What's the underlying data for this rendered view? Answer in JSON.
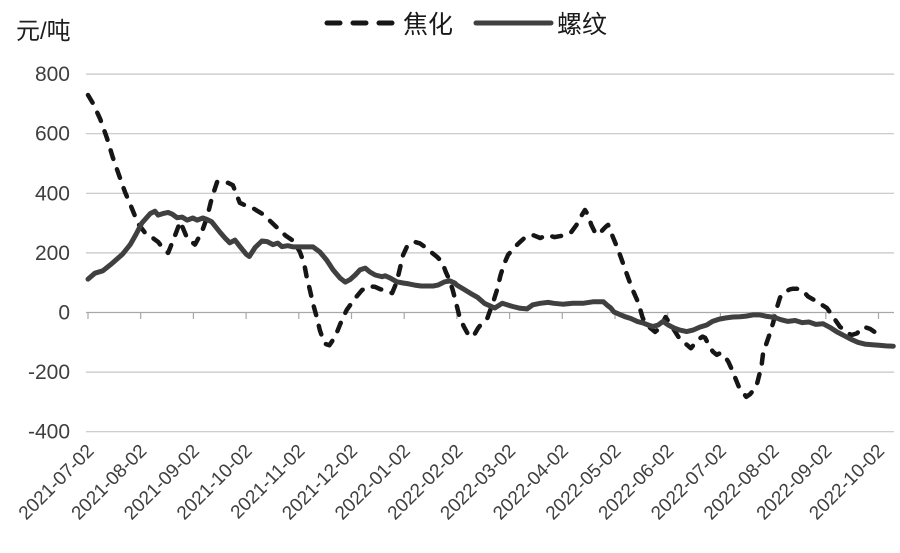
{
  "chart_data": {
    "type": "line",
    "y_unit": "元/吨",
    "ylim": [
      -400,
      800
    ],
    "y_ticks": [
      800,
      600,
      400,
      200,
      0,
      -200,
      -400
    ],
    "grid": true,
    "legend_position": "top-center",
    "x_axis": {
      "tick_labels": [
        "2021-07-02",
        "2021-08-02",
        "2021-09-02",
        "2021-10-02",
        "2021-11-02",
        "2021-12-02",
        "2022-01-02",
        "2022-02-02",
        "2022-03-02",
        "2022-04-02",
        "2022-05-02",
        "2022-06-02",
        "2022-07-02",
        "2022-08-02",
        "2022-09-02",
        "2022-10-02"
      ],
      "points_x_unit": "months_after_2021-07-02"
    },
    "colors": {
      "grid": "#c6c6c6",
      "axis": "#a8a8a8",
      "tick_text": "#3f3f3f"
    },
    "series": [
      {
        "name": "焦化",
        "style": "dashed",
        "color": "#161616",
        "points": [
          [
            0.0,
            730
          ],
          [
            0.1,
            700
          ],
          [
            0.23,
            650
          ],
          [
            0.36,
            585
          ],
          [
            0.47,
            520
          ],
          [
            0.59,
            460
          ],
          [
            0.7,
            405
          ],
          [
            0.82,
            355
          ],
          [
            0.95,
            298
          ],
          [
            1.08,
            268
          ],
          [
            1.23,
            250
          ],
          [
            1.33,
            237
          ],
          [
            1.42,
            216
          ],
          [
            1.52,
            200
          ],
          [
            1.65,
            258
          ],
          [
            1.75,
            305
          ],
          [
            1.88,
            250
          ],
          [
            2.03,
            228
          ],
          [
            2.16,
            270
          ],
          [
            2.26,
            320
          ],
          [
            2.35,
            384
          ],
          [
            2.45,
            438
          ],
          [
            2.57,
            440
          ],
          [
            2.66,
            435
          ],
          [
            2.75,
            427
          ],
          [
            2.88,
            368
          ],
          [
            3.0,
            358
          ],
          [
            3.13,
            350
          ],
          [
            3.3,
            332
          ],
          [
            3.45,
            308
          ],
          [
            3.6,
            283
          ],
          [
            3.75,
            258
          ],
          [
            3.9,
            240
          ],
          [
            4.02,
            203
          ],
          [
            4.1,
            165
          ],
          [
            4.15,
            119
          ],
          [
            4.21,
            76
          ],
          [
            4.27,
            30
          ],
          [
            4.34,
            -15
          ],
          [
            4.4,
            -60
          ],
          [
            4.46,
            -90
          ],
          [
            4.5,
            -105
          ],
          [
            4.58,
            -110
          ],
          [
            4.69,
            -81
          ],
          [
            4.82,
            -24
          ],
          [
            4.91,
            9
          ],
          [
            5.07,
            48
          ],
          [
            5.2,
            75
          ],
          [
            5.33,
            88
          ],
          [
            5.45,
            86
          ],
          [
            5.55,
            78
          ],
          [
            5.64,
            75
          ],
          [
            5.7,
            69
          ],
          [
            5.77,
            65
          ],
          [
            5.86,
            103
          ],
          [
            5.92,
            149
          ],
          [
            5.98,
            193
          ],
          [
            6.05,
            220
          ],
          [
            6.11,
            232
          ],
          [
            6.2,
            237
          ],
          [
            6.3,
            232
          ],
          [
            6.43,
            215
          ],
          [
            6.53,
            200
          ],
          [
            6.62,
            187
          ],
          [
            6.72,
            170
          ],
          [
            6.79,
            136
          ],
          [
            6.86,
            109
          ],
          [
            6.92,
            76
          ],
          [
            6.98,
            36
          ],
          [
            7.05,
            -14
          ],
          [
            7.13,
            -47
          ],
          [
            7.22,
            -76
          ],
          [
            7.31,
            -81
          ],
          [
            7.4,
            -53
          ],
          [
            7.5,
            -30
          ],
          [
            7.58,
            -18
          ],
          [
            7.62,
            2
          ],
          [
            7.69,
            36
          ],
          [
            7.76,
            76
          ],
          [
            7.83,
            126
          ],
          [
            7.89,
            160
          ],
          [
            7.97,
            193
          ],
          [
            8.1,
            220
          ],
          [
            8.2,
            237
          ],
          [
            8.3,
            253
          ],
          [
            8.44,
            260
          ],
          [
            8.58,
            250
          ],
          [
            8.72,
            260
          ],
          [
            8.85,
            253
          ],
          [
            9.01,
            258
          ],
          [
            9.17,
            270
          ],
          [
            9.27,
            294
          ],
          [
            9.37,
            327
          ],
          [
            9.43,
            344
          ],
          [
            9.49,
            327
          ],
          [
            9.55,
            294
          ],
          [
            9.64,
            262
          ],
          [
            9.73,
            270
          ],
          [
            9.82,
            287
          ],
          [
            9.87,
            294
          ],
          [
            9.96,
            253
          ],
          [
            10.06,
            210
          ],
          [
            10.15,
            166
          ],
          [
            10.25,
            116
          ],
          [
            10.32,
            82
          ],
          [
            10.42,
            42
          ],
          [
            10.47,
            15
          ],
          [
            10.52,
            -15
          ],
          [
            10.57,
            -35
          ],
          [
            10.67,
            -52
          ],
          [
            10.76,
            -65
          ],
          [
            10.86,
            -50
          ],
          [
            10.96,
            -15
          ],
          [
            11.08,
            -47
          ],
          [
            11.2,
            -81
          ],
          [
            11.31,
            -100
          ],
          [
            11.44,
            -120
          ],
          [
            11.57,
            -92
          ],
          [
            11.66,
            -81
          ],
          [
            11.71,
            -85
          ],
          [
            11.8,
            -116
          ],
          [
            11.86,
            -132
          ],
          [
            11.93,
            -142
          ],
          [
            12.0,
            -136
          ],
          [
            12.09,
            -148
          ],
          [
            12.15,
            -165
          ],
          [
            12.22,
            -192
          ],
          [
            12.28,
            -219
          ],
          [
            12.35,
            -249
          ],
          [
            12.42,
            -266
          ],
          [
            12.49,
            -283
          ],
          [
            12.56,
            -275
          ],
          [
            12.62,
            -262
          ],
          [
            12.7,
            -236
          ],
          [
            12.78,
            -180
          ],
          [
            12.81,
            -136
          ],
          [
            12.92,
            -80
          ],
          [
            13.0,
            -35
          ],
          [
            13.07,
            15
          ],
          [
            13.13,
            50
          ],
          [
            13.19,
            65
          ],
          [
            13.26,
            72
          ],
          [
            13.32,
            78
          ],
          [
            13.38,
            80
          ],
          [
            13.45,
            80
          ],
          [
            13.52,
            75
          ],
          [
            13.57,
            72
          ],
          [
            13.66,
            54
          ],
          [
            13.78,
            42
          ],
          [
            13.89,
            30
          ],
          [
            14.02,
            15
          ],
          [
            14.14,
            -15
          ],
          [
            14.27,
            -48
          ],
          [
            14.36,
            -60
          ],
          [
            14.48,
            -76
          ],
          [
            14.59,
            -70
          ],
          [
            14.72,
            -48
          ],
          [
            14.84,
            -55
          ],
          [
            14.95,
            -68
          ],
          [
            15.07,
            -76
          ]
        ]
      },
      {
        "name": "螺纹",
        "style": "solid",
        "color": "#404040",
        "points": [
          [
            0.0,
            112
          ],
          [
            0.13,
            132
          ],
          [
            0.28,
            140
          ],
          [
            0.46,
            165
          ],
          [
            0.65,
            195
          ],
          [
            0.8,
            228
          ],
          [
            0.91,
            262
          ],
          [
            1.02,
            300
          ],
          [
            1.18,
            332
          ],
          [
            1.27,
            340
          ],
          [
            1.33,
            327
          ],
          [
            1.42,
            332
          ],
          [
            1.52,
            336
          ],
          [
            1.6,
            330
          ],
          [
            1.69,
            318
          ],
          [
            1.79,
            320
          ],
          [
            1.88,
            310
          ],
          [
            1.99,
            317
          ],
          [
            2.07,
            310
          ],
          [
            2.18,
            317
          ],
          [
            2.26,
            312
          ],
          [
            2.35,
            304
          ],
          [
            2.5,
            270
          ],
          [
            2.6,
            250
          ],
          [
            2.69,
            234
          ],
          [
            2.79,
            243
          ],
          [
            2.88,
            222
          ],
          [
            3.0,
            196
          ],
          [
            3.06,
            188
          ],
          [
            3.17,
            218
          ],
          [
            3.3,
            240
          ],
          [
            3.4,
            238
          ],
          [
            3.51,
            228
          ],
          [
            3.6,
            233
          ],
          [
            3.68,
            221
          ],
          [
            3.79,
            224
          ],
          [
            3.9,
            220
          ],
          [
            4.02,
            220
          ],
          [
            4.15,
            220
          ],
          [
            4.27,
            220
          ],
          [
            4.4,
            203
          ],
          [
            4.53,
            176
          ],
          [
            4.65,
            143
          ],
          [
            4.78,
            116
          ],
          [
            4.88,
            102
          ],
          [
            4.97,
            110
          ],
          [
            5.07,
            126
          ],
          [
            5.16,
            143
          ],
          [
            5.26,
            149
          ],
          [
            5.35,
            136
          ],
          [
            5.45,
            126
          ],
          [
            5.58,
            120
          ],
          [
            5.64,
            123
          ],
          [
            5.73,
            116
          ],
          [
            5.86,
            103
          ],
          [
            5.98,
            99
          ],
          [
            6.09,
            96
          ],
          [
            6.2,
            92
          ],
          [
            6.32,
            89
          ],
          [
            6.44,
            89
          ],
          [
            6.55,
            89
          ],
          [
            6.64,
            92
          ],
          [
            6.77,
            103
          ],
          [
            6.87,
            106
          ],
          [
            6.96,
            99
          ],
          [
            7.0,
            92
          ],
          [
            7.13,
            78
          ],
          [
            7.26,
            64
          ],
          [
            7.39,
            51
          ],
          [
            7.53,
            30
          ],
          [
            7.63,
            22
          ],
          [
            7.72,
            15
          ],
          [
            7.86,
            31
          ],
          [
            7.95,
            26
          ],
          [
            8.06,
            20
          ],
          [
            8.2,
            14
          ],
          [
            8.33,
            12
          ],
          [
            8.44,
            26
          ],
          [
            8.58,
            31
          ],
          [
            8.73,
            34
          ],
          [
            8.84,
            31
          ],
          [
            9.01,
            28
          ],
          [
            9.2,
            31
          ],
          [
            9.39,
            31
          ],
          [
            9.58,
            36
          ],
          [
            9.78,
            36
          ],
          [
            9.85,
            25
          ],
          [
            9.92,
            15
          ],
          [
            9.98,
            2
          ],
          [
            10.11,
            -8
          ],
          [
            10.19,
            -14
          ],
          [
            10.3,
            -20
          ],
          [
            10.42,
            -30
          ],
          [
            10.53,
            -35
          ],
          [
            10.63,
            -42
          ],
          [
            10.72,
            -47
          ],
          [
            10.82,
            -42
          ],
          [
            10.91,
            -30
          ],
          [
            11.01,
            -42
          ],
          [
            11.12,
            -52
          ],
          [
            11.23,
            -59
          ],
          [
            11.36,
            -64
          ],
          [
            11.48,
            -59
          ],
          [
            11.61,
            -49
          ],
          [
            11.74,
            -42
          ],
          [
            11.85,
            -30
          ],
          [
            11.98,
            -22
          ],
          [
            12.11,
            -18
          ],
          [
            12.24,
            -15
          ],
          [
            12.37,
            -14
          ],
          [
            12.49,
            -12
          ],
          [
            12.62,
            -8
          ],
          [
            12.75,
            -8
          ],
          [
            12.88,
            -13
          ],
          [
            13.02,
            -16
          ],
          [
            13.15,
            -24
          ],
          [
            13.28,
            -30
          ],
          [
            13.42,
            -27
          ],
          [
            13.55,
            -34
          ],
          [
            13.68,
            -32
          ],
          [
            13.81,
            -40
          ],
          [
            13.95,
            -38
          ],
          [
            14.08,
            -50
          ],
          [
            14.21,
            -65
          ],
          [
            14.35,
            -78
          ],
          [
            14.48,
            -90
          ],
          [
            14.61,
            -100
          ],
          [
            14.74,
            -106
          ],
          [
            14.88,
            -108
          ],
          [
            15.01,
            -110
          ],
          [
            15.14,
            -112
          ],
          [
            15.28,
            -113
          ]
        ]
      }
    ]
  }
}
